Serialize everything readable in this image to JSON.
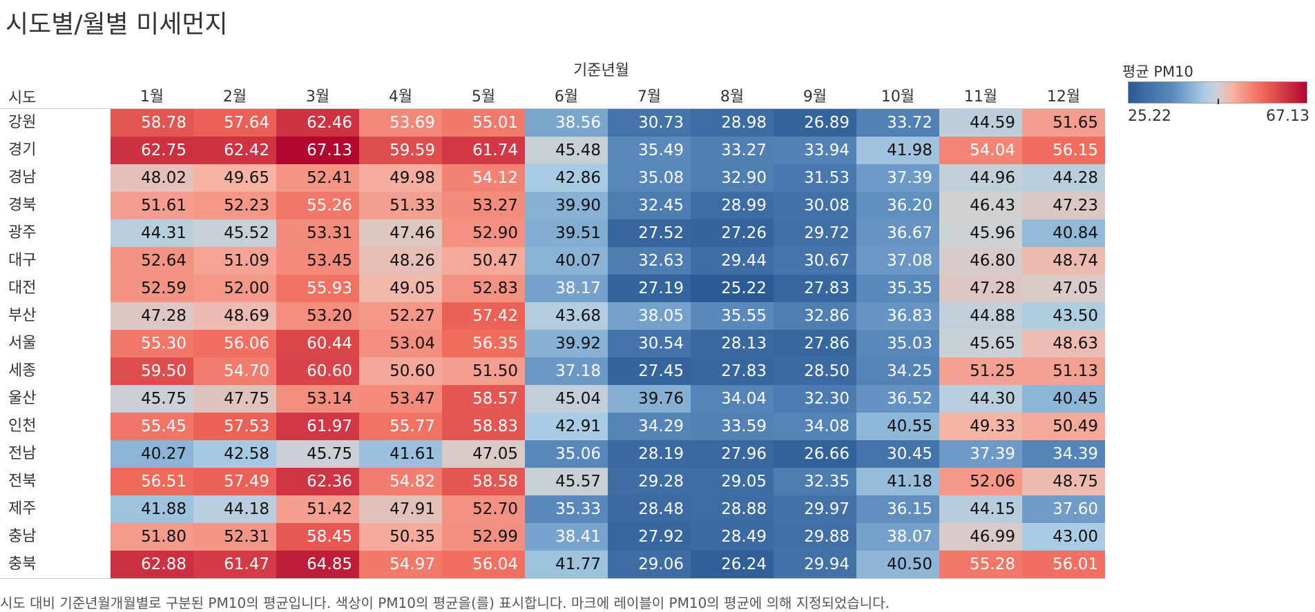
{
  "title": "시도별/월별 미세먼지",
  "column_group_label": "기준년월",
  "row_header": "시도",
  "legend": {
    "title": "평균 PM10",
    "min_label": "25.22",
    "max_label": "67.13",
    "min": 25.22,
    "max": 67.13
  },
  "caption": "시도 대비 기준년월개월별로 구분된 PM10의 평균입니다. 색상이 PM10의 평균을(를) 표시합니다. 마크에 레이블이 PM10의 평균에 의해 지정되었습니다.",
  "colors": {
    "low": "#2b5b94",
    "mid": "#cfd1d3",
    "high": "#b2072f"
  },
  "chart_data": {
    "type": "heatmap",
    "title": "시도별/월별 미세먼지",
    "xlabel": "기준년월",
    "ylabel": "시도",
    "color_label": "평균 PM10",
    "color_range": [
      25.22,
      67.13
    ],
    "months": [
      "1월",
      "2월",
      "3월",
      "4월",
      "5월",
      "6월",
      "7월",
      "8월",
      "9월",
      "10월",
      "11월",
      "12월"
    ],
    "regions": [
      "강원",
      "경기",
      "경남",
      "경북",
      "광주",
      "대구",
      "대전",
      "부산",
      "서울",
      "세종",
      "울산",
      "인천",
      "전남",
      "전북",
      "제주",
      "충남",
      "충북"
    ],
    "values": [
      [
        58.78,
        57.64,
        62.46,
        53.69,
        55.01,
        38.56,
        30.73,
        28.98,
        26.89,
        33.72,
        44.59,
        51.65
      ],
      [
        62.75,
        62.42,
        67.13,
        59.59,
        61.74,
        45.48,
        35.49,
        33.27,
        33.94,
        41.98,
        54.04,
        56.15
      ],
      [
        48.02,
        49.65,
        52.41,
        49.98,
        54.12,
        42.86,
        35.08,
        32.9,
        31.53,
        37.39,
        44.96,
        44.28
      ],
      [
        51.61,
        52.23,
        55.26,
        51.33,
        53.27,
        39.9,
        32.45,
        28.99,
        30.08,
        36.2,
        46.43,
        47.23
      ],
      [
        44.31,
        45.52,
        53.31,
        47.46,
        52.9,
        39.51,
        27.52,
        27.26,
        29.72,
        36.67,
        45.96,
        40.84
      ],
      [
        52.64,
        51.09,
        53.45,
        48.26,
        50.47,
        40.07,
        32.63,
        29.44,
        30.67,
        37.08,
        46.8,
        48.74
      ],
      [
        52.59,
        52.0,
        55.93,
        49.05,
        52.83,
        38.17,
        27.19,
        25.22,
        27.83,
        35.35,
        47.28,
        47.05
      ],
      [
        47.28,
        48.69,
        53.2,
        52.27,
        57.42,
        43.68,
        38.05,
        35.55,
        32.86,
        36.83,
        44.88,
        43.5
      ],
      [
        55.3,
        56.06,
        60.44,
        53.04,
        56.35,
        39.92,
        30.54,
        28.13,
        27.86,
        35.03,
        45.65,
        48.63
      ],
      [
        59.5,
        54.7,
        60.6,
        50.6,
        51.5,
        37.18,
        27.45,
        27.83,
        28.5,
        34.25,
        51.25,
        51.13
      ],
      [
        45.75,
        47.75,
        53.14,
        53.47,
        58.57,
        45.04,
        39.76,
        34.04,
        32.3,
        36.52,
        44.3,
        40.45
      ],
      [
        55.45,
        57.53,
        61.97,
        55.77,
        58.83,
        42.91,
        34.29,
        33.59,
        34.08,
        40.55,
        49.33,
        50.49
      ],
      [
        40.27,
        42.58,
        45.75,
        41.61,
        47.05,
        35.06,
        28.19,
        27.96,
        26.66,
        30.45,
        37.39,
        34.39
      ],
      [
        56.51,
        57.49,
        62.36,
        54.82,
        58.58,
        45.57,
        29.28,
        29.05,
        32.35,
        41.18,
        52.06,
        48.75
      ],
      [
        41.88,
        44.18,
        51.42,
        47.91,
        52.7,
        35.33,
        28.48,
        28.88,
        29.97,
        36.15,
        44.15,
        37.6
      ],
      [
        51.8,
        52.31,
        58.45,
        50.35,
        52.99,
        38.41,
        27.92,
        28.49,
        29.88,
        38.07,
        46.99,
        43.0
      ],
      [
        62.88,
        61.47,
        64.85,
        54.97,
        56.04,
        41.77,
        29.06,
        26.24,
        29.94,
        40.5,
        55.28,
        56.01
      ]
    ]
  }
}
